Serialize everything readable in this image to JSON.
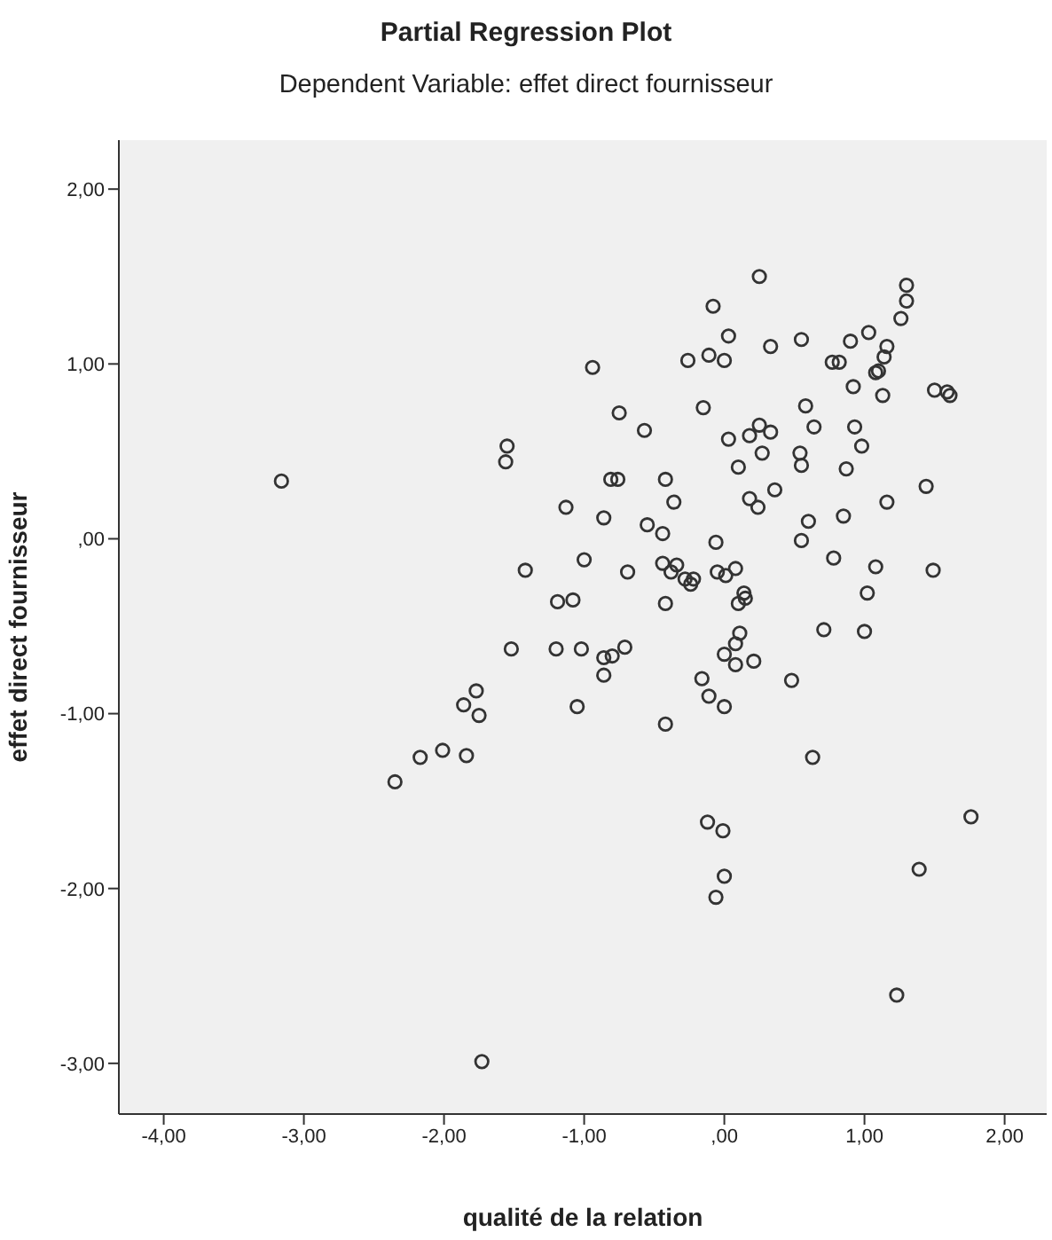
{
  "chart_data": {
    "type": "scatter",
    "title": "Partial Regression Plot",
    "subtitle": "Dependent Variable: effet direct fournisseur",
    "xlabel": "qualité de la relation",
    "ylabel": "effet direct fournisseur",
    "xlim": [
      -4.32,
      2.3
    ],
    "ylim": [
      -3.29,
      2.28
    ],
    "xticks": [
      {
        "value": -4,
        "label": "-4,00"
      },
      {
        "value": -3,
        "label": "-3,00"
      },
      {
        "value": -2,
        "label": "-2,00"
      },
      {
        "value": -1,
        "label": "-1,00"
      },
      {
        "value": 0,
        "label": ",00"
      },
      {
        "value": 1,
        "label": "1,00"
      },
      {
        "value": 2,
        "label": "2,00"
      }
    ],
    "yticks": [
      {
        "value": -3,
        "label": "-3,00"
      },
      {
        "value": -2,
        "label": "-2,00"
      },
      {
        "value": -1,
        "label": "-1,00"
      },
      {
        "value": 0,
        "label": ",00"
      },
      {
        "value": 1,
        "label": "1,00"
      },
      {
        "value": 2,
        "label": "2,00"
      }
    ],
    "grid": false,
    "legend": false,
    "marker": "circle",
    "series": [
      {
        "color": "#333333",
        "x": [
          -3.16,
          -1.55,
          -1.56,
          -1.13,
          -1.42,
          -1.19,
          -1.52,
          -1.2,
          -1.77,
          -1.86,
          -1.75,
          -2.01,
          -2.35,
          -2.17,
          -1.84,
          -1.73,
          0.25,
          -0.08,
          1.3,
          1.3,
          1.26,
          0.03,
          -0.94,
          -0.26,
          -0.11,
          0.0,
          0.33,
          0.55,
          0.77,
          0.82,
          0.9,
          1.03,
          1.16,
          1.14,
          1.1,
          1.08,
          0.92,
          1.13,
          1.5,
          1.59,
          1.61,
          -0.75,
          -0.57,
          -0.15,
          0.58,
          0.64,
          0.93,
          0.98,
          0.03,
          0.18,
          0.25,
          0.33,
          0.27,
          0.1,
          0.54,
          0.55,
          0.87,
          1.44,
          -0.81,
          -0.76,
          -0.42,
          -0.36,
          -0.86,
          -0.55,
          -0.44,
          0.18,
          0.24,
          0.36,
          0.6,
          0.55,
          0.85,
          1.16,
          -0.06,
          0.78,
          1.08,
          1.49,
          1.02,
          1.0,
          0.71,
          -1.0,
          -0.69,
          -0.44,
          -0.38,
          -0.34,
          -0.28,
          -0.24,
          -0.22,
          -0.42,
          -0.05,
          0.01,
          0.08,
          0.14,
          0.15,
          0.1,
          -1.08,
          -1.02,
          -0.86,
          -0.8,
          -0.71,
          -0.86,
          -1.05,
          -0.42,
          -0.16,
          -0.11,
          0.0,
          0.0,
          0.08,
          0.11,
          0.08,
          0.21,
          0.48,
          0.63,
          -0.12,
          -0.01,
          0.0,
          -0.06,
          1.76,
          1.39,
          1.23
        ],
        "values": [
          0.33,
          0.53,
          0.44,
          0.18,
          -0.18,
          -0.36,
          -0.63,
          -0.63,
          -0.87,
          -0.95,
          -1.01,
          -1.21,
          -1.39,
          -1.25,
          -1.24,
          -2.99,
          1.5,
          1.33,
          1.45,
          1.36,
          1.26,
          1.16,
          0.98,
          1.02,
          1.05,
          1.02,
          1.1,
          1.14,
          1.01,
          1.01,
          1.13,
          1.18,
          1.1,
          1.04,
          0.96,
          0.95,
          0.87,
          0.82,
          0.85,
          0.84,
          0.82,
          0.72,
          0.62,
          0.75,
          0.76,
          0.64,
          0.64,
          0.53,
          0.57,
          0.59,
          0.65,
          0.61,
          0.49,
          0.41,
          0.49,
          0.42,
          0.4,
          0.3,
          0.34,
          0.34,
          0.34,
          0.21,
          0.12,
          0.08,
          0.03,
          0.23,
          0.18,
          0.28,
          0.1,
          -0.01,
          0.13,
          0.21,
          -0.02,
          -0.11,
          -0.16,
          -0.18,
          -0.31,
          -0.53,
          -0.52,
          -0.12,
          -0.19,
          -0.14,
          -0.19,
          -0.15,
          -0.23,
          -0.26,
          -0.23,
          -0.37,
          -0.19,
          -0.21,
          -0.17,
          -0.31,
          -0.34,
          -0.37,
          -0.35,
          -0.63,
          -0.68,
          -0.67,
          -0.62,
          -0.78,
          -0.96,
          -1.06,
          -0.8,
          -0.9,
          -0.96,
          -0.66,
          -0.6,
          -0.54,
          -0.72,
          -0.7,
          -0.81,
          -1.25,
          -1.62,
          -1.67,
          -1.93,
          -2.05,
          -1.59,
          -1.89,
          -2.61
        ]
      }
    ]
  }
}
